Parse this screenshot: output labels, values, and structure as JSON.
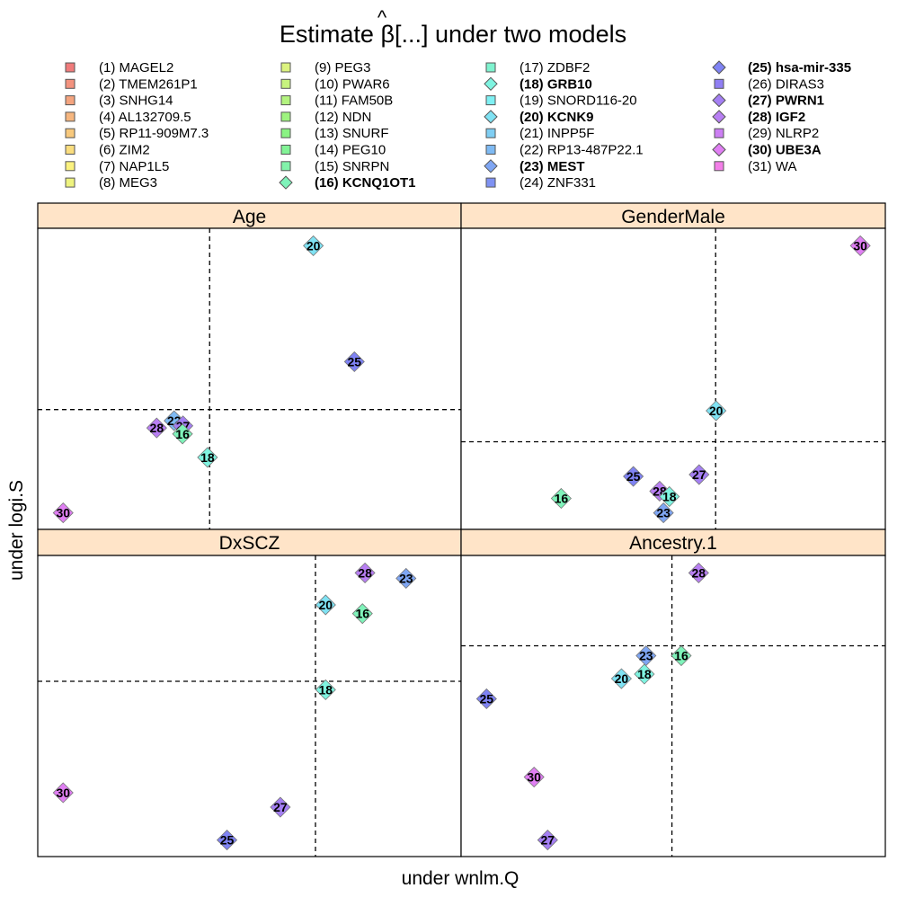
{
  "chart_data": {
    "type": "scatter",
    "title_prefix": "Estimate ",
    "title_symbol": "β",
    "title_hat": "^",
    "title_suffix": "[...] under two models",
    "xlabel": "under wnlm.Q",
    "ylabel": "under logi.S",
    "legend_placement": "top",
    "strip_color": "#ffe4c8",
    "legend": [
      {
        "label": "(1) MAGEL2",
        "color": "#f07b7b",
        "shape": "square",
        "bold": false
      },
      {
        "label": "(2) TMEM261P1",
        "color": "#f3937f",
        "shape": "square",
        "bold": false
      },
      {
        "label": "(3) SNHG14",
        "color": "#f4a47f",
        "shape": "square",
        "bold": false
      },
      {
        "label": "(4) AL132709.5",
        "color": "#f6b67f",
        "shape": "square",
        "bold": false
      },
      {
        "label": "(5) RP11-909M7.3",
        "color": "#f8c97d",
        "shape": "square",
        "bold": false
      },
      {
        "label": "(6) ZIM2",
        "color": "#fadd7f",
        "shape": "square",
        "bold": false
      },
      {
        "label": "(7) NAP1L5",
        "color": "#fbf27f",
        "shape": "square",
        "bold": false
      },
      {
        "label": "(8) MEG3",
        "color": "#eef37f",
        "shape": "square",
        "bold": false
      },
      {
        "label": "(9) PEG3",
        "color": "#dcf37f",
        "shape": "square",
        "bold": false
      },
      {
        "label": "(10) PWAR6",
        "color": "#c7f37f",
        "shape": "square",
        "bold": false
      },
      {
        "label": "(11) FAM50B",
        "color": "#b3f37f",
        "shape": "square",
        "bold": false
      },
      {
        "label": "(12) NDN",
        "color": "#9ef37f",
        "shape": "square",
        "bold": false
      },
      {
        "label": "(13) SNURF",
        "color": "#8af383",
        "shape": "square",
        "bold": false
      },
      {
        "label": "(14) PEG10",
        "color": "#82f396",
        "shape": "square",
        "bold": false
      },
      {
        "label": "(15) SNRPN",
        "color": "#82f3aa",
        "shape": "square",
        "bold": false
      },
      {
        "label": "(16) KCNQ1OT1",
        "color": "#7ff3ba",
        "shape": "diamond",
        "bold": true
      },
      {
        "label": "(17) ZDBF2",
        "color": "#7ff3cf",
        "shape": "square",
        "bold": false
      },
      {
        "label": "(18) GRB10",
        "color": "#7ff3e0",
        "shape": "diamond",
        "bold": true
      },
      {
        "label": "(19) SNORD116-20",
        "color": "#7ff0f3",
        "shape": "square",
        "bold": false
      },
      {
        "label": "(20) KCNK9",
        "color": "#7fe2f3",
        "shape": "diamond",
        "bold": true
      },
      {
        "label": "(21) INPP5F",
        "color": "#7fcef3",
        "shape": "square",
        "bold": false
      },
      {
        "label": "(22) RP13-487P22.1",
        "color": "#7fbaf3",
        "shape": "square",
        "bold": false
      },
      {
        "label": "(23) MEST",
        "color": "#7fa6f3",
        "shape": "diamond",
        "bold": true
      },
      {
        "label": "(24) ZNF331",
        "color": "#7f92f3",
        "shape": "square",
        "bold": false
      },
      {
        "label": "(25) hsa-mir-335",
        "color": "#7f83f3",
        "shape": "diamond",
        "bold": true
      },
      {
        "label": "(26) DIRAS3",
        "color": "#907ff3",
        "shape": "square",
        "bold": false
      },
      {
        "label": "(27) PWRN1",
        "color": "#a47ff3",
        "shape": "diamond",
        "bold": true
      },
      {
        "label": "(28) IGF2",
        "color": "#b87ff3",
        "shape": "diamond",
        "bold": true
      },
      {
        "label": "(29) NLRP2",
        "color": "#cc7ff3",
        "shape": "square",
        "bold": false
      },
      {
        "label": "(30) UBE3A",
        "color": "#e07ff3",
        "shape": "diamond",
        "bold": true
      },
      {
        "label": "(31) WA",
        "color": "#f37fe8",
        "shape": "square",
        "bold": false
      }
    ],
    "panels": [
      {
        "name": "Age",
        "points": [
          {
            "id": "20",
            "x": 0.651,
            "y": 0.942
          },
          {
            "id": "25",
            "x": 0.748,
            "y": 0.557
          },
          {
            "id": "22",
            "x": 0.322,
            "y": 0.361
          },
          {
            "id": "28",
            "x": 0.281,
            "y": 0.337
          },
          {
            "id": "27",
            "x": 0.343,
            "y": 0.344
          },
          {
            "id": "16",
            "x": 0.342,
            "y": 0.317
          },
          {
            "id": "18",
            "x": 0.401,
            "y": 0.239
          },
          {
            "id": "30",
            "x": 0.06,
            "y": 0.055
          }
        ],
        "vline": 0.406,
        "hline": 0.398
      },
      {
        "name": "GenderMale",
        "points": [
          {
            "id": "30",
            "x": 0.941,
            "y": 0.942
          },
          {
            "id": "20",
            "x": 0.601,
            "y": 0.394
          },
          {
            "id": "27",
            "x": 0.561,
            "y": 0.182
          },
          {
            "id": "25",
            "x": 0.406,
            "y": 0.176
          },
          {
            "id": "28",
            "x": 0.468,
            "y": 0.127
          },
          {
            "id": "18",
            "x": 0.491,
            "y": 0.109
          },
          {
            "id": "16",
            "x": 0.236,
            "y": 0.103
          },
          {
            "id": "23",
            "x": 0.477,
            "y": 0.055
          }
        ],
        "vline": 0.6,
        "hline": 0.291
      },
      {
        "name": "DxSCZ",
        "points": [
          {
            "id": "28",
            "x": 0.773,
            "y": 0.942
          },
          {
            "id": "23",
            "x": 0.87,
            "y": 0.924
          },
          {
            "id": "20",
            "x": 0.68,
            "y": 0.836
          },
          {
            "id": "16",
            "x": 0.767,
            "y": 0.807
          },
          {
            "id": "18",
            "x": 0.68,
            "y": 0.554
          },
          {
            "id": "30",
            "x": 0.06,
            "y": 0.212
          },
          {
            "id": "27",
            "x": 0.573,
            "y": 0.164
          },
          {
            "id": "25",
            "x": 0.447,
            "y": 0.055
          }
        ],
        "vline": 0.656,
        "hline": 0.582
      },
      {
        "name": "Ancestry.1",
        "points": [
          {
            "id": "28",
            "x": 0.56,
            "y": 0.942
          },
          {
            "id": "23",
            "x": 0.436,
            "y": 0.667
          },
          {
            "id": "16",
            "x": 0.519,
            "y": 0.667
          },
          {
            "id": "18",
            "x": 0.432,
            "y": 0.606
          },
          {
            "id": "20",
            "x": 0.378,
            "y": 0.591
          },
          {
            "id": "25",
            "x": 0.06,
            "y": 0.524
          },
          {
            "id": "30",
            "x": 0.172,
            "y": 0.264
          },
          {
            "id": "27",
            "x": 0.204,
            "y": 0.055
          }
        ],
        "vline": 0.497,
        "hline": 0.7
      }
    ]
  }
}
